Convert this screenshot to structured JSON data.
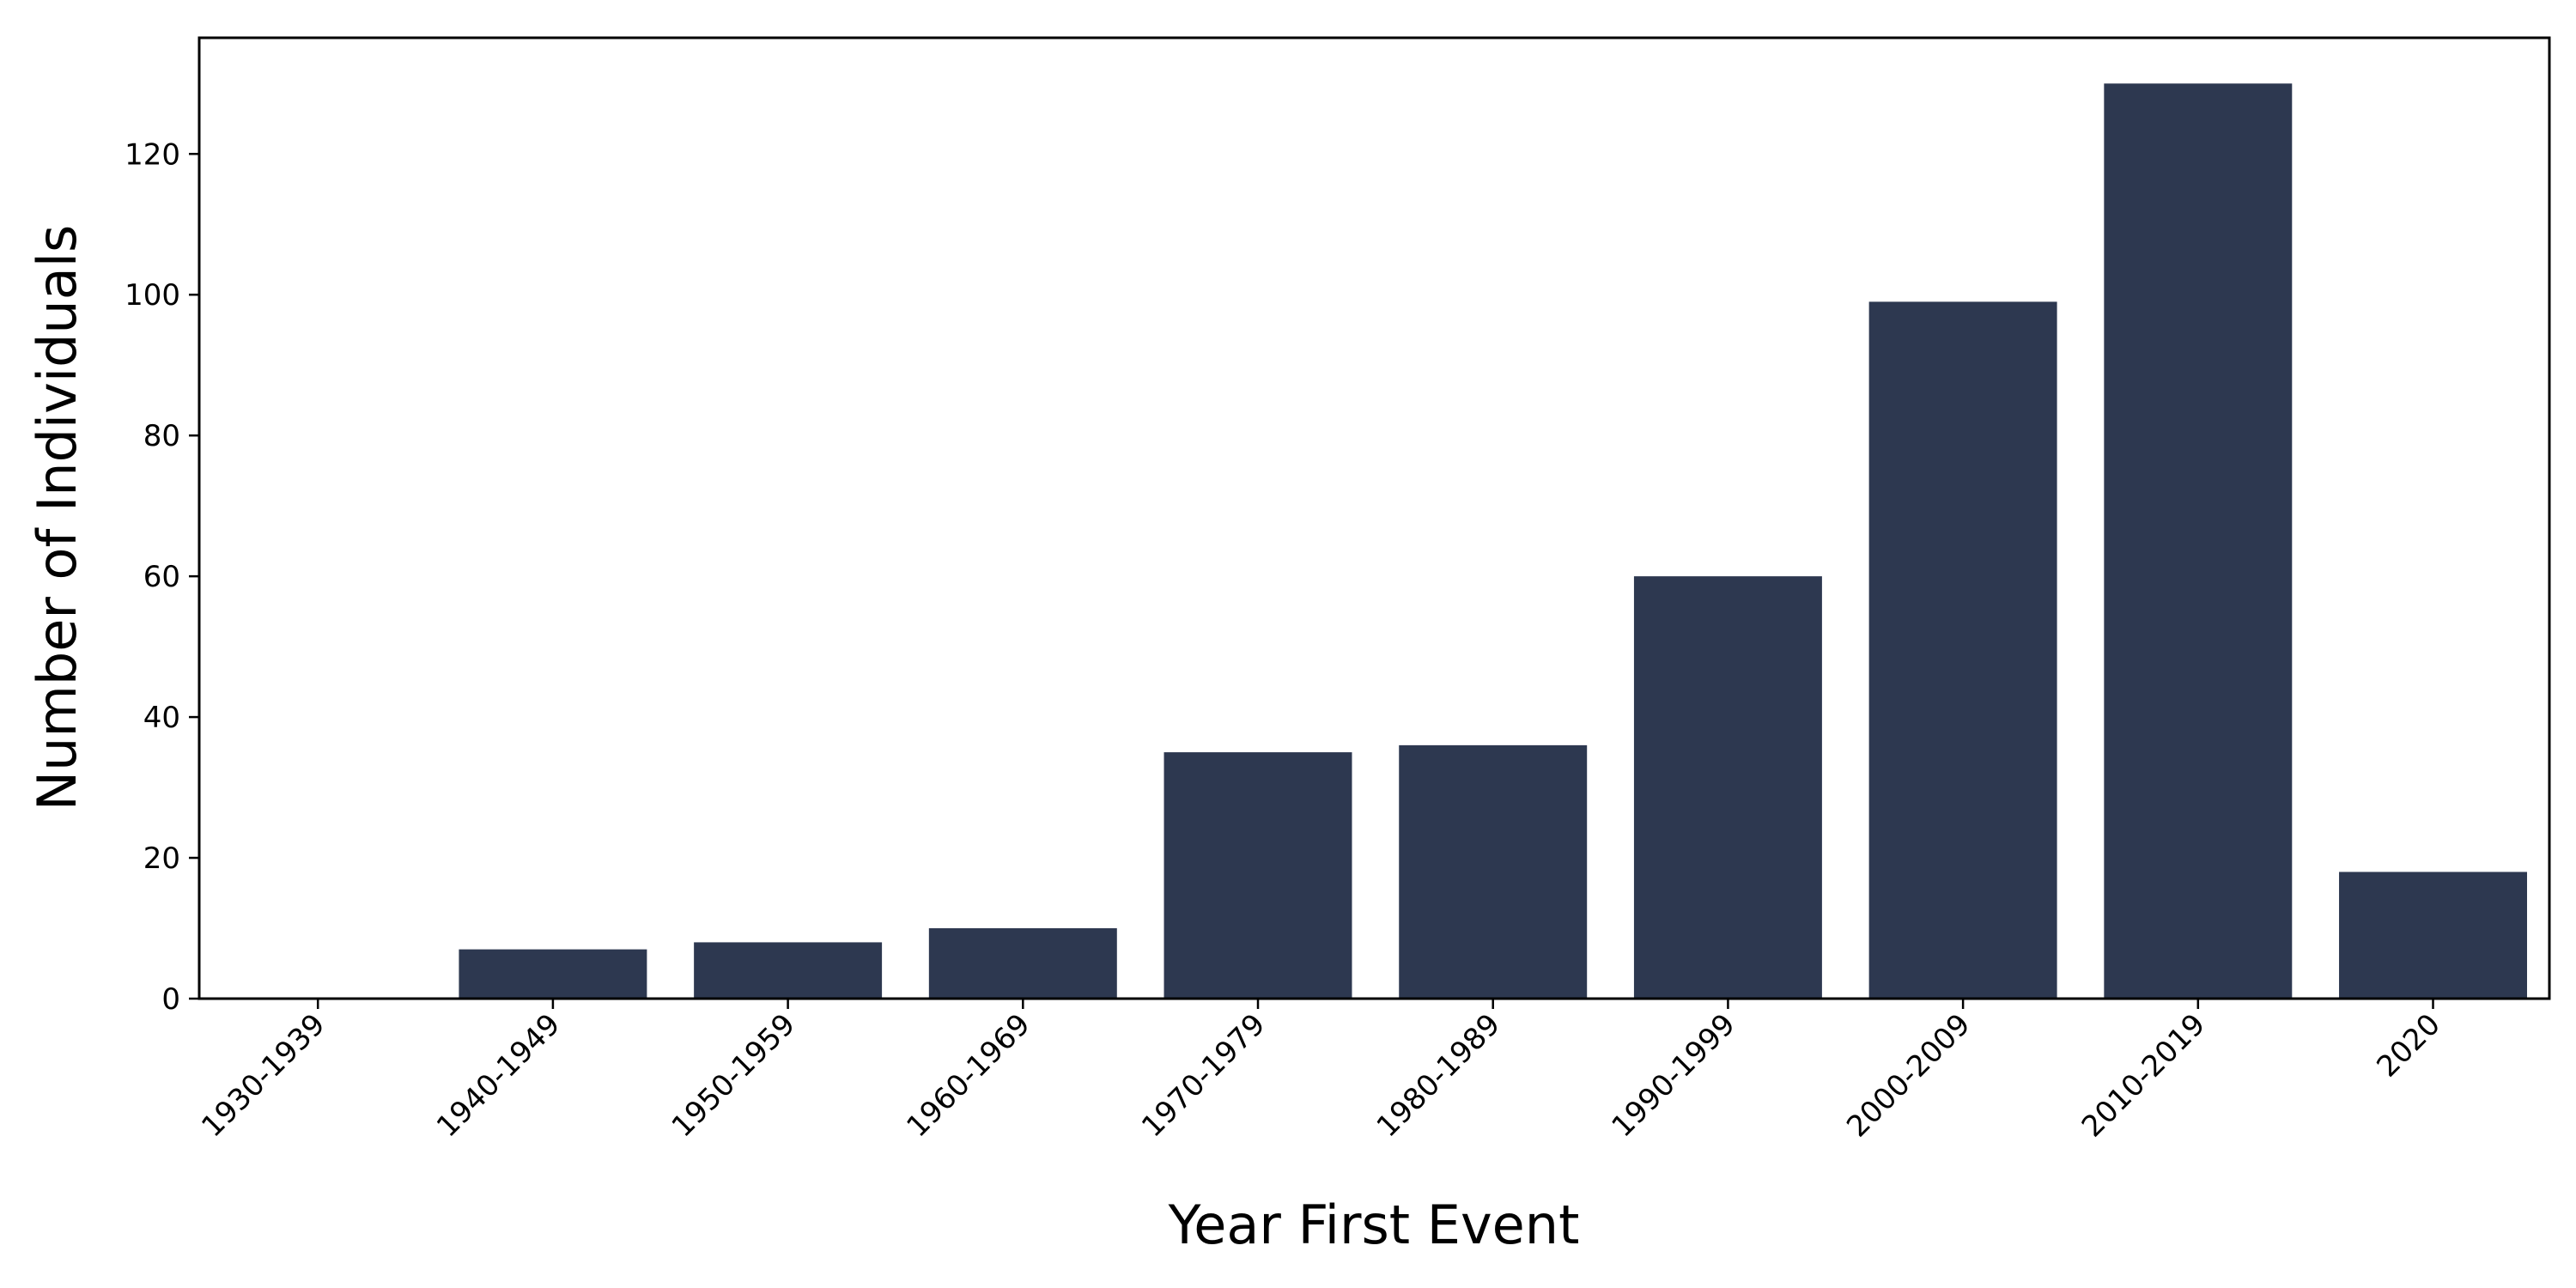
{
  "chart_data": {
    "type": "bar",
    "categories": [
      "1930-1939",
      "1940-1949",
      "1950-1959",
      "1960-1969",
      "1970-1979",
      "1980-1989",
      "1990-1999",
      "2000-2009",
      "2010-2019",
      "2020"
    ],
    "values": [
      0,
      7,
      8,
      10,
      35,
      36,
      60,
      99,
      130,
      18
    ],
    "xlabel": "Year First Event",
    "ylabel": "Number of Individuals",
    "ylim": [
      0,
      136.5
    ],
    "yticks": [
      0,
      20,
      40,
      60,
      80,
      100,
      120
    ],
    "grid": false,
    "legend": "none",
    "bar_color": "#2d3850"
  }
}
